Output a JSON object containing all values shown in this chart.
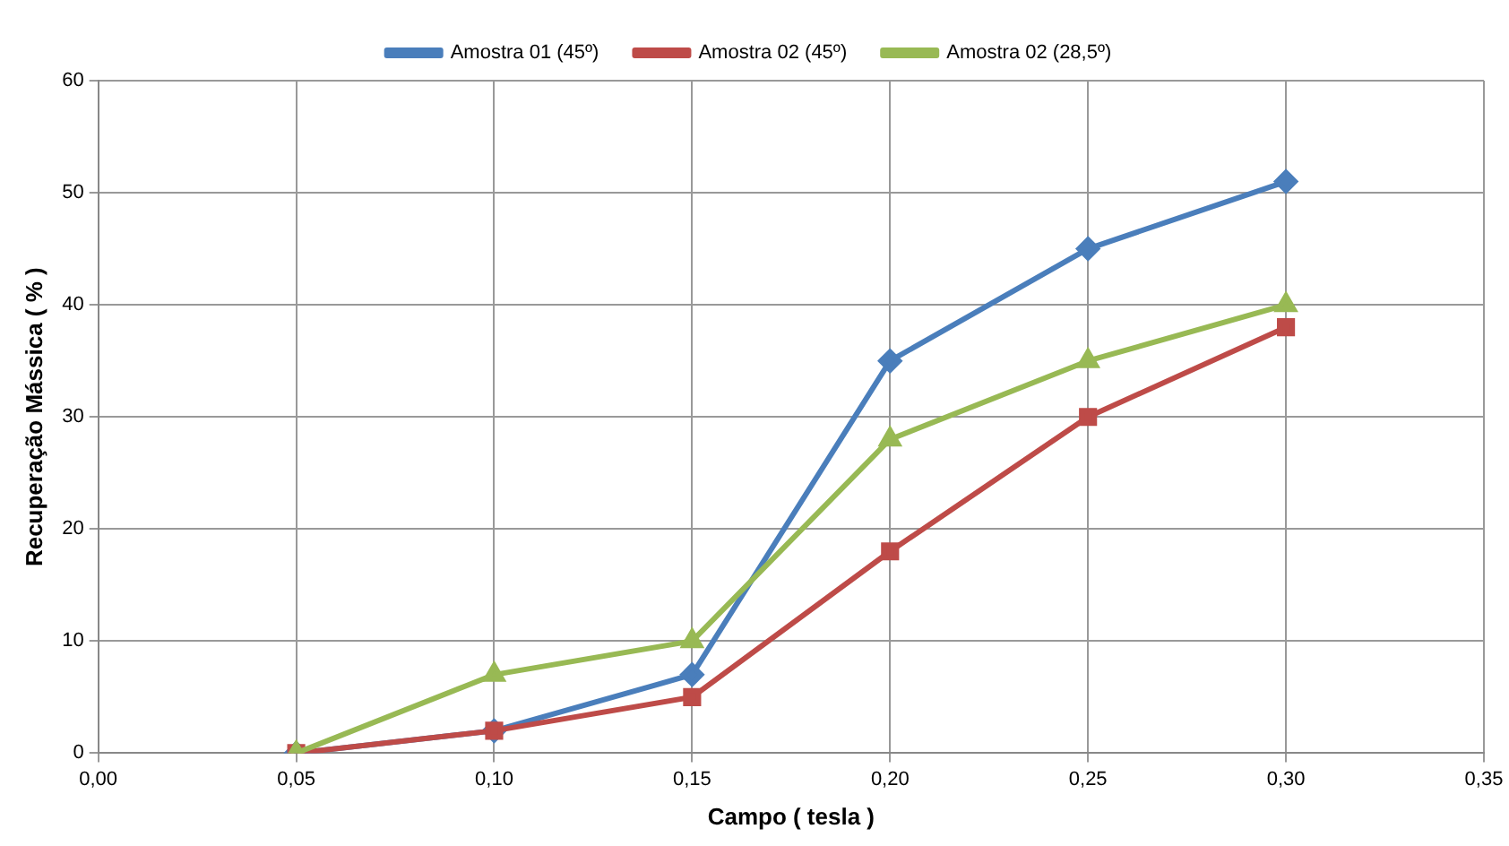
{
  "chart_data": {
    "type": "line",
    "xlabel": "Campo ( tesla )",
    "ylabel": "Recuperação Mássica ( % )",
    "x": [
      0.05,
      0.1,
      0.15,
      0.2,
      0.25,
      0.3
    ],
    "series": [
      {
        "name": "Amostra 01 (45º)",
        "color": "#4a7ebb",
        "marker": "diamond",
        "values": [
          0,
          2,
          7,
          35,
          45,
          51
        ]
      },
      {
        "name": "Amostra 02 (45º)",
        "color": "#be4b48",
        "marker": "square",
        "values": [
          0,
          2,
          5,
          18,
          30,
          38
        ]
      },
      {
        "name": "Amostra 02 (28,5º)",
        "color": "#98b954",
        "marker": "triangle",
        "values": [
          0,
          7,
          10,
          28,
          35,
          40
        ]
      }
    ],
    "xlim": [
      0,
      0.35
    ],
    "xticks": [
      {
        "value": 0,
        "label": "0,00"
      },
      {
        "value": 0.05,
        "label": "0,05"
      },
      {
        "value": 0.1,
        "label": "0,10"
      },
      {
        "value": 0.15,
        "label": "0,15"
      },
      {
        "value": 0.2,
        "label": "0,20"
      },
      {
        "value": 0.25,
        "label": "0,25"
      },
      {
        "value": 0.3,
        "label": "0,30"
      },
      {
        "value": 0.35,
        "label": "0,35"
      }
    ],
    "ylim": [
      0,
      60
    ],
    "yticks": [
      0,
      10,
      20,
      30,
      40,
      50,
      60
    ],
    "grid": true,
    "legend": "top",
    "line_style": "solid"
  }
}
